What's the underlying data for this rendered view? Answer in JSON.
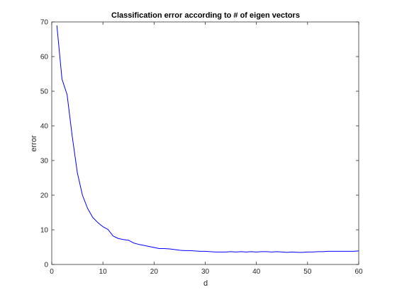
{
  "chart_data": {
    "type": "line",
    "title": "Classification error according to # of eigen vectors",
    "xlabel": "d",
    "ylabel": "error",
    "xlim": [
      0,
      60
    ],
    "ylim": [
      0,
      70
    ],
    "x_ticks": [
      "0",
      "10",
      "20",
      "30",
      "40",
      "50",
      "60"
    ],
    "y_ticks": [
      "0",
      "10",
      "20",
      "30",
      "40",
      "50",
      "60",
      "70"
    ],
    "grid": false,
    "line_color": "#0000ff",
    "series": [
      {
        "x": [
          1,
          2,
          3,
          4,
          5,
          6,
          7,
          8,
          9,
          10,
          11,
          12,
          13,
          14,
          15,
          16,
          17,
          18,
          19,
          20,
          21,
          22,
          23,
          24,
          25,
          26,
          27,
          28,
          29,
          30,
          31,
          32,
          33,
          34,
          35,
          36,
          37,
          38,
          39,
          40,
          41,
          42,
          43,
          44,
          45,
          46,
          47,
          48,
          49,
          50,
          51,
          52,
          53,
          54,
          55,
          56,
          57,
          58,
          59,
          60
        ],
        "y": [
          69,
          53.5,
          49,
          37,
          26.5,
          20,
          16.2,
          13.6,
          12.1,
          10.9,
          10.1,
          8.2,
          7.5,
          7.2,
          7.0,
          6.2,
          5.8,
          5.5,
          5.2,
          4.9,
          4.6,
          4.6,
          4.5,
          4.3,
          4.1,
          4.0,
          4.0,
          3.9,
          3.8,
          3.8,
          3.7,
          3.6,
          3.6,
          3.6,
          3.7,
          3.6,
          3.7,
          3.6,
          3.7,
          3.6,
          3.7,
          3.7,
          3.6,
          3.7,
          3.6,
          3.5,
          3.6,
          3.5,
          3.5,
          3.6,
          3.6,
          3.7,
          3.7,
          3.8,
          3.8,
          3.8,
          3.8,
          3.8,
          3.8,
          3.9
        ]
      }
    ]
  }
}
